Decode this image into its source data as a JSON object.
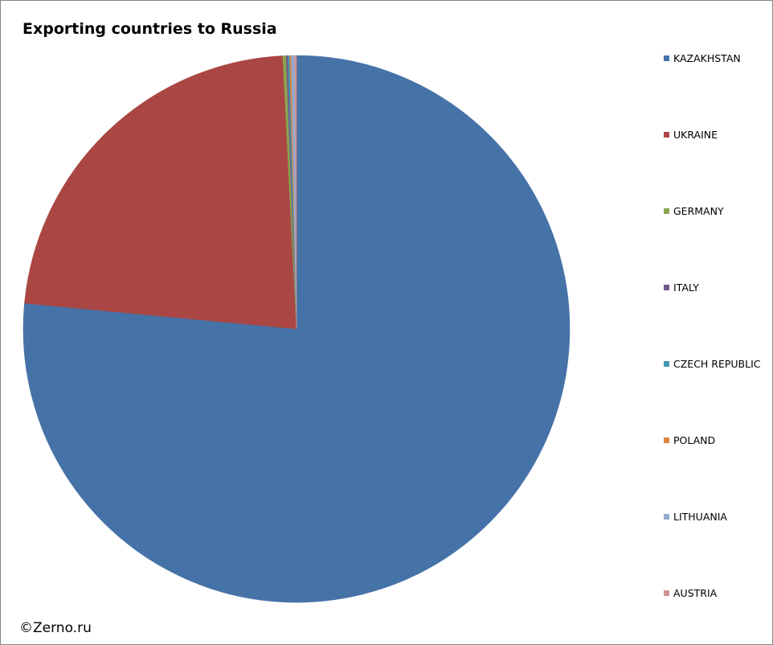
{
  "chart_data": {
    "type": "pie",
    "title": "Exporting countries to Russia",
    "categories": [
      "KAZAKHSTAN",
      "UKRAINE",
      "GERMANY",
      "ITALY",
      "CZECH REPUBLIC",
      "POLAND",
      "LITHUANIA",
      "AUSTRIA"
    ],
    "values": [
      76.5,
      22.7,
      0.2,
      0.1,
      0.1,
      0.1,
      0.2,
      0.1
    ],
    "colors": [
      "#4572A7",
      "#AA4643",
      "#89A54E",
      "#71588F",
      "#4198AF",
      "#DB843D",
      "#93A9CF",
      "#D19392"
    ],
    "legend_position": "right"
  },
  "footer": {
    "copyright": "©Zerno.ru"
  }
}
